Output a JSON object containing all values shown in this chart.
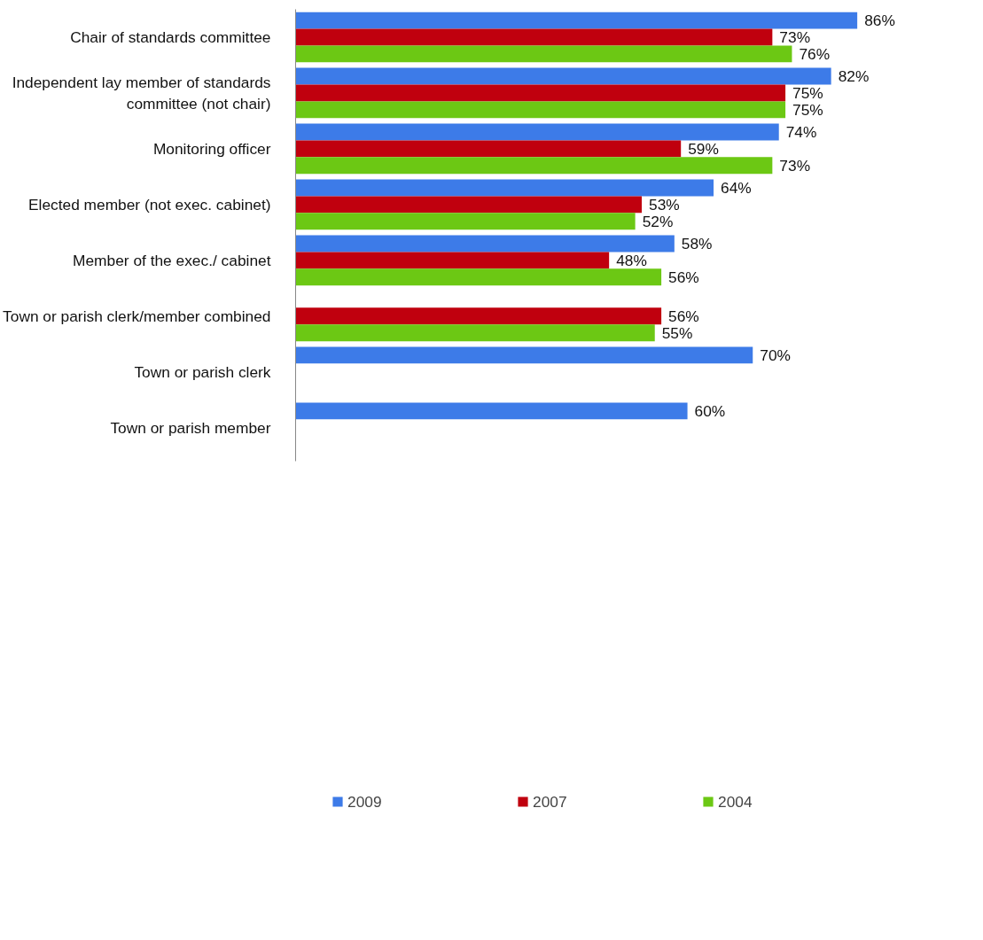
{
  "chart_data": {
    "type": "bar",
    "orientation": "horizontal",
    "categories": [
      "Chair of standards committee",
      "Independent lay member of standards committee (not chair)",
      "Monitoring officer",
      "Elected member (not exec. cabinet)",
      "Member of the exec./ cabinet",
      "Town or parish clerk/member combined",
      "Town or parish clerk",
      "Town or parish member"
    ],
    "series": [
      {
        "name": "2009",
        "color": "#3d7be8",
        "values": [
          86,
          82,
          74,
          64,
          58,
          null,
          70,
          60
        ],
        "value_labels": [
          "86%",
          "82%",
          "74%",
          "64%",
          "58%",
          null,
          "70%",
          "60%"
        ]
      },
      {
        "name": "2007",
        "color": "#c0000e",
        "values": [
          73,
          75,
          59,
          53,
          48,
          56,
          null,
          null
        ],
        "value_labels": [
          "73%",
          "75%",
          "59%",
          "53%",
          "48%",
          "56%",
          null,
          null
        ]
      },
      {
        "name": "2004",
        "color": "#6cc814",
        "values": [
          76,
          75,
          73,
          52,
          56,
          55,
          null,
          null
        ],
        "value_labels": [
          "76%",
          "75%",
          "73%",
          "52%",
          "56%",
          "55%",
          null,
          null
        ]
      }
    ],
    "grid": false,
    "legend": "bottom"
  }
}
